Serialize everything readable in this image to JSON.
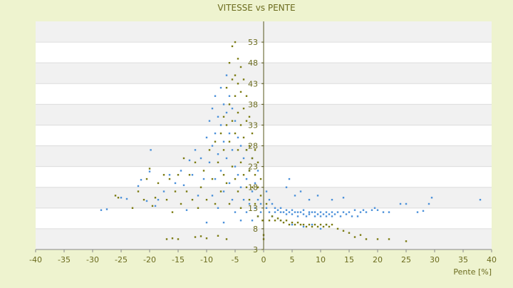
{
  "chart_data": {
    "type": "scatter",
    "title": "VITESSE vs PENTE",
    "xlabel": "Pente [%]",
    "ylabel": "",
    "xlim": [
      -40,
      40
    ],
    "ylim": [
      3,
      58
    ],
    "x_ticks": [
      "-40",
      "-35",
      "-30",
      "-25",
      "-20",
      "-15",
      "-10",
      "-5",
      "0",
      "5",
      "10",
      "15",
      "20",
      "25",
      "30",
      "35",
      "40"
    ],
    "y_ticks": [
      "3",
      "8",
      "13",
      "18",
      "23",
      "28",
      "33",
      "38",
      "43",
      "48",
      "53"
    ],
    "grid": true,
    "legend": "none",
    "colors": {
      "background": "#eef3cf",
      "series_blue": "#4a90d9",
      "series_olive": "#7a7a10",
      "axis_text": "#6b6b1e",
      "band": "#f1f1f1",
      "zero_line": "#55551a"
    },
    "series": [
      {
        "color": "#4a90d9",
        "points": [
          [
            -28.5,
            12.5
          ],
          [
            -27.5,
            12.7
          ],
          [
            -25,
            15.5
          ],
          [
            -24,
            15.2
          ],
          [
            -22,
            18.3
          ],
          [
            -21.5,
            19.8
          ],
          [
            -20.5,
            14.7
          ],
          [
            -20,
            21.8
          ],
          [
            -19.8,
            27
          ],
          [
            -19,
            13.5
          ],
          [
            -18.5,
            15
          ],
          [
            -17.5,
            17
          ],
          [
            -16.5,
            21
          ],
          [
            -15.5,
            19
          ],
          [
            -14.5,
            22
          ],
          [
            -14,
            18.5
          ],
          [
            -13.5,
            12.5
          ],
          [
            -13,
            24.5
          ],
          [
            -12.5,
            21
          ],
          [
            -12,
            27
          ],
          [
            -11.5,
            16
          ],
          [
            -11,
            25
          ],
          [
            -10.5,
            20
          ],
          [
            -10,
            30
          ],
          [
            -10,
            9.5
          ],
          [
            -9.5,
            34
          ],
          [
            -9.5,
            24
          ],
          [
            -9,
            37
          ],
          [
            -9,
            28
          ],
          [
            -9,
            16
          ],
          [
            -8.5,
            40
          ],
          [
            -8.5,
            31
          ],
          [
            -8.5,
            20
          ],
          [
            -8,
            35
          ],
          [
            -8,
            26
          ],
          [
            -8,
            13
          ],
          [
            -7.5,
            42
          ],
          [
            -7.5,
            33
          ],
          [
            -7.5,
            22
          ],
          [
            -7,
            38
          ],
          [
            -7,
            29
          ],
          [
            -7,
            17
          ],
          [
            -7,
            9.5
          ],
          [
            -6.5,
            45
          ],
          [
            -6.5,
            36
          ],
          [
            -6.5,
            25
          ],
          [
            -6,
            40
          ],
          [
            -6,
            31
          ],
          [
            -6,
            19
          ],
          [
            -5.5,
            37
          ],
          [
            -5.5,
            27
          ],
          [
            -5.5,
            15
          ],
          [
            -5,
            34
          ],
          [
            -5,
            23
          ],
          [
            -5,
            12
          ],
          [
            -4.5,
            30
          ],
          [
            -4.5,
            21
          ],
          [
            -4,
            28
          ],
          [
            -4,
            18
          ],
          [
            -4,
            10
          ],
          [
            -3.5,
            25
          ],
          [
            -3.5,
            15
          ],
          [
            -3,
            27
          ],
          [
            -3,
            20
          ],
          [
            -3,
            12
          ],
          [
            -2.5,
            22
          ],
          [
            -2.5,
            14
          ],
          [
            -2,
            25
          ],
          [
            -2,
            17
          ],
          [
            -2,
            10
          ],
          [
            -1.5,
            19
          ],
          [
            -1.5,
            13
          ],
          [
            -1,
            22
          ],
          [
            -1,
            15
          ],
          [
            -1,
            11
          ],
          [
            -0.5,
            14
          ],
          [
            -0.5,
            12
          ],
          [
            0.5,
            17
          ],
          [
            0.5,
            13
          ],
          [
            1,
            15
          ],
          [
            1,
            12
          ],
          [
            1.5,
            14
          ],
          [
            1.5,
            11
          ],
          [
            2,
            13
          ],
          [
            2,
            12
          ],
          [
            2.5,
            12.5
          ],
          [
            3,
            13
          ],
          [
            3,
            12
          ],
          [
            3.5,
            12
          ],
          [
            4,
            12.5
          ],
          [
            4,
            11.5
          ],
          [
            4.5,
            12
          ],
          [
            5,
            11.5
          ],
          [
            5,
            12.5
          ],
          [
            5.5,
            12
          ],
          [
            6,
            11
          ],
          [
            6,
            12
          ],
          [
            6.5,
            12
          ],
          [
            7,
            11.5
          ],
          [
            7,
            12.5
          ],
          [
            7.5,
            11
          ],
          [
            8,
            12
          ],
          [
            8,
            11.5
          ],
          [
            8.5,
            12
          ],
          [
            9,
            11
          ],
          [
            9,
            12
          ],
          [
            9.5,
            11.5
          ],
          [
            10,
            12
          ],
          [
            10,
            11
          ],
          [
            10.5,
            11.5
          ],
          [
            11,
            12
          ],
          [
            11,
            11
          ],
          [
            11.5,
            11.5
          ],
          [
            12,
            12
          ],
          [
            12,
            11
          ],
          [
            12.5,
            11.5
          ],
          [
            13,
            12
          ],
          [
            13.5,
            11
          ],
          [
            14,
            12
          ],
          [
            14.5,
            11.5
          ],
          [
            15,
            12
          ],
          [
            15.5,
            11
          ],
          [
            16,
            12.5
          ],
          [
            16.5,
            11
          ],
          [
            17,
            12
          ],
          [
            17.5,
            12.5
          ],
          [
            18,
            12
          ],
          [
            19,
            12.5
          ],
          [
            19.5,
            13
          ],
          [
            20,
            12.5
          ],
          [
            21,
            12
          ],
          [
            22,
            12
          ],
          [
            24,
            14
          ],
          [
            25,
            14
          ],
          [
            27,
            12
          ],
          [
            28,
            12.3
          ],
          [
            29,
            14
          ],
          [
            29.5,
            15.5
          ],
          [
            38,
            15
          ],
          [
            4,
            18
          ],
          [
            4.5,
            20
          ],
          [
            5.5,
            16
          ],
          [
            6.5,
            17
          ],
          [
            8,
            15
          ],
          [
            9.5,
            16
          ],
          [
            12,
            15
          ],
          [
            14,
            15.5
          ],
          [
            3,
            10
          ],
          [
            5,
            9
          ],
          [
            7,
            8.5
          ],
          [
            8.5,
            9
          ],
          [
            10,
            8
          ],
          [
            11,
            9
          ]
        ]
      },
      {
        "color": "#7a7a10",
        "points": [
          [
            -26,
            16
          ],
          [
            -25.5,
            15.5
          ],
          [
            -23,
            13
          ],
          [
            -22,
            17
          ],
          [
            -21,
            15
          ],
          [
            -20.5,
            20
          ],
          [
            -20,
            22.5
          ],
          [
            -19.5,
            13.5
          ],
          [
            -19,
            15.5
          ],
          [
            -18.5,
            19
          ],
          [
            -17.5,
            21
          ],
          [
            -17,
            15
          ],
          [
            -16.5,
            20
          ],
          [
            -16,
            12
          ],
          [
            -15.5,
            17
          ],
          [
            -15,
            21
          ],
          [
            -14.5,
            14
          ],
          [
            -14,
            25
          ],
          [
            -13.5,
            17
          ],
          [
            -13,
            21
          ],
          [
            -12.5,
            15
          ],
          [
            -12,
            24
          ],
          [
            -11.5,
            13
          ],
          [
            -11,
            18
          ],
          [
            -10.5,
            22
          ],
          [
            -10,
            15
          ],
          [
            -9.5,
            27
          ],
          [
            -9,
            20
          ],
          [
            -8.5,
            29
          ],
          [
            -8.5,
            14
          ],
          [
            -8,
            24
          ],
          [
            -7.5,
            31
          ],
          [
            -7.5,
            17
          ],
          [
            -7,
            35
          ],
          [
            -7,
            27
          ],
          [
            -7,
            21
          ],
          [
            -6.5,
            42
          ],
          [
            -6.5,
            33
          ],
          [
            -6.5,
            19
          ],
          [
            -6,
            48
          ],
          [
            -6,
            38
          ],
          [
            -6,
            29
          ],
          [
            -6,
            14
          ],
          [
            -5.5,
            52
          ],
          [
            -5.5,
            44
          ],
          [
            -5.5,
            34
          ],
          [
            -5.5,
            23
          ],
          [
            -5,
            53
          ],
          [
            -5,
            45
          ],
          [
            -5,
            40
          ],
          [
            -5,
            31
          ],
          [
            -5,
            20
          ],
          [
            -4.5,
            49
          ],
          [
            -4.5,
            43
          ],
          [
            -4.5,
            36
          ],
          [
            -4.5,
            27
          ],
          [
            -4.5,
            17
          ],
          [
            -4,
            47
          ],
          [
            -4,
            41
          ],
          [
            -4,
            33
          ],
          [
            -4,
            24
          ],
          [
            -4,
            13
          ],
          [
            -3.5,
            44
          ],
          [
            -3.5,
            37
          ],
          [
            -3.5,
            30
          ],
          [
            -3.5,
            21
          ],
          [
            -3,
            40
          ],
          [
            -3,
            34
          ],
          [
            -3,
            27
          ],
          [
            -3,
            18
          ],
          [
            -2.5,
            35
          ],
          [
            -2.5,
            28
          ],
          [
            -2.5,
            22
          ],
          [
            -2.5,
            15
          ],
          [
            -2,
            31
          ],
          [
            -2,
            25
          ],
          [
            -2,
            18
          ],
          [
            -1.5,
            27
          ],
          [
            -1.5,
            21
          ],
          [
            -1.5,
            14
          ],
          [
            -1,
            24
          ],
          [
            -1,
            18
          ],
          [
            -1,
            11
          ],
          [
            -0.5,
            20
          ],
          [
            -0.5,
            16
          ],
          [
            -0.2,
            10
          ],
          [
            0,
            6.5
          ],
          [
            0,
            5.5
          ],
          [
            0.5,
            14
          ],
          [
            1,
            10
          ],
          [
            1.5,
            11
          ],
          [
            2,
            10
          ],
          [
            2.5,
            10.5
          ],
          [
            3,
            10
          ],
          [
            3.5,
            9.5
          ],
          [
            4,
            10
          ],
          [
            4.5,
            9
          ],
          [
            5,
            9.5
          ],
          [
            5.5,
            9
          ],
          [
            6,
            9.5
          ],
          [
            6.5,
            9
          ],
          [
            7,
            9
          ],
          [
            7.5,
            8.5
          ],
          [
            8,
            9
          ],
          [
            8.5,
            8.5
          ],
          [
            9,
            9
          ],
          [
            9.5,
            8.5
          ],
          [
            10,
            9
          ],
          [
            10.5,
            8.5
          ],
          [
            11,
            9
          ],
          [
            11.5,
            8.5
          ],
          [
            12,
            9
          ],
          [
            13,
            8
          ],
          [
            14,
            7.5
          ],
          [
            15,
            7
          ],
          [
            16,
            6
          ],
          [
            17,
            6.5
          ],
          [
            18,
            5.5
          ],
          [
            20,
            5.5
          ],
          [
            22,
            5.5
          ],
          [
            25,
            5
          ],
          [
            -17,
            5.5
          ],
          [
            -16,
            5.7
          ],
          [
            -15,
            5.5
          ],
          [
            -12,
            6
          ],
          [
            -11,
            6.2
          ],
          [
            -10,
            5.7
          ],
          [
            -8,
            6.3
          ],
          [
            -6.5,
            5.5
          ]
        ]
      }
    ]
  }
}
